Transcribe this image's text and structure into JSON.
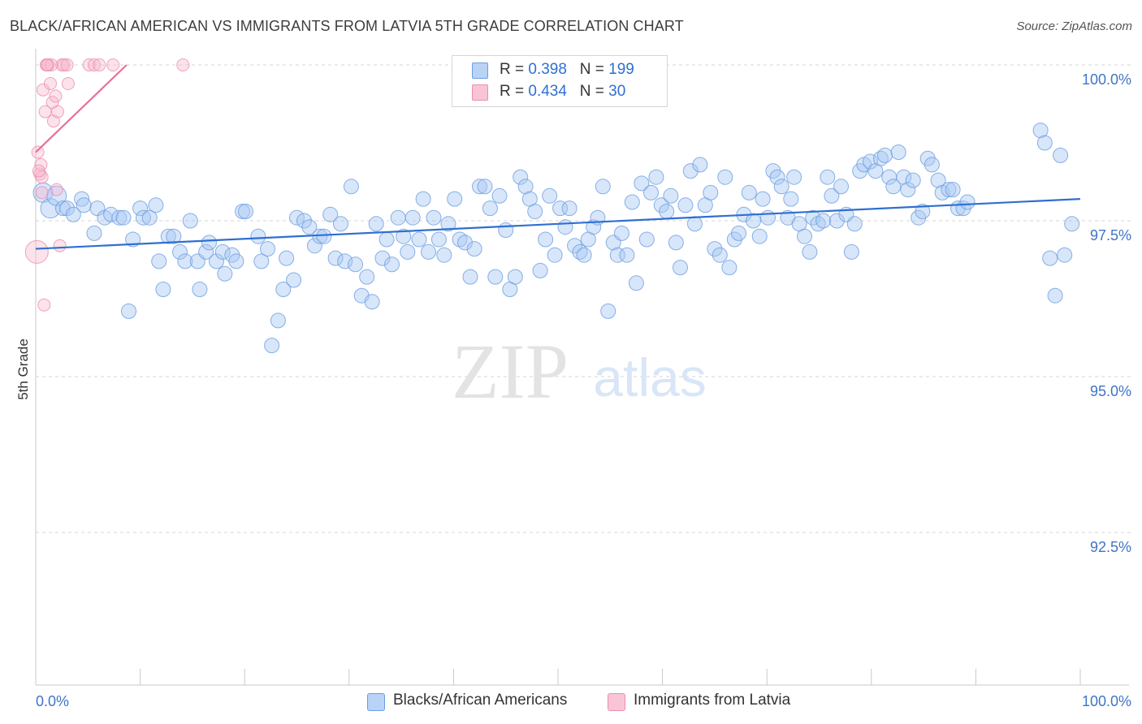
{
  "title": "BLACK/AFRICAN AMERICAN VS IMMIGRANTS FROM LATVIA 5TH GRADE CORRELATION CHART",
  "source": "Source: ZipAtlas.com",
  "watermark": {
    "zip": "ZIP",
    "atlas": "atlas"
  },
  "legend": {
    "rows": [
      {
        "r_label": "R =",
        "r_value": "0.398",
        "n_label": "N =",
        "n_value": "199",
        "color": "#a9c8f5"
      },
      {
        "r_label": "R =",
        "r_value": "0.434",
        "n_label": "N =",
        "n_value": "30",
        "color": "#f7b7cc"
      }
    ]
  },
  "bottom_legend": [
    {
      "label": "Blacks/African Americans",
      "color": "#a9c8f5"
    },
    {
      "label": "Immigrants from Latvia",
      "color": "#f7b7cc"
    }
  ],
  "chart_data": {
    "type": "scatter",
    "title": "BLACK/AFRICAN AMERICAN VS IMMIGRANTS FROM LATVIA 5TH GRADE CORRELATION CHART",
    "xlabel": "",
    "ylabel": "5th Grade",
    "xlim": [
      0,
      100
    ],
    "ylim": [
      90.0,
      100.2
    ],
    "y_ticks": [
      {
        "value": 100.0,
        "label": "100.0%"
      },
      {
        "value": 97.5,
        "label": "97.5%"
      },
      {
        "value": 95.0,
        "label": "95.0%"
      },
      {
        "value": 92.5,
        "label": "92.5%"
      }
    ],
    "x_tick_labels": {
      "min": "0.0%",
      "max": "100.0%"
    },
    "x_minor_ticks": [
      10,
      20,
      30,
      40,
      50,
      60,
      70,
      80,
      90,
      100
    ],
    "grid": true,
    "series": [
      {
        "name": "Blacks/African Americans",
        "color": "#a9c8f5",
        "stroke": "#6b9de0",
        "line_color": "#2f6fd1",
        "trend": {
          "x0": 0,
          "y0": 97.05,
          "x1": 100,
          "y1": 97.85
        },
        "points": [
          [
            0.7,
            97.95
          ],
          [
            1.4,
            97.7
          ],
          [
            2.0,
            97.9
          ],
          [
            2.6,
            97.7
          ],
          [
            3.0,
            97.7
          ],
          [
            3.6,
            97.6
          ],
          [
            4.4,
            97.85
          ],
          [
            4.6,
            97.75
          ],
          [
            5.6,
            97.3
          ],
          [
            5.9,
            97.7
          ],
          [
            6.6,
            97.55
          ],
          [
            7.2,
            97.6
          ],
          [
            8.0,
            97.55
          ],
          [
            8.4,
            97.55
          ],
          [
            8.9,
            96.05
          ],
          [
            9.3,
            97.2
          ],
          [
            10.0,
            97.7
          ],
          [
            10.3,
            97.55
          ],
          [
            10.9,
            97.55
          ],
          [
            11.5,
            97.75
          ],
          [
            11.8,
            96.85
          ],
          [
            12.2,
            96.4
          ],
          [
            12.7,
            97.25
          ],
          [
            13.2,
            97.25
          ],
          [
            13.8,
            97.0
          ],
          [
            14.3,
            96.85
          ],
          [
            14.8,
            97.5
          ],
          [
            15.5,
            96.85
          ],
          [
            15.7,
            96.4
          ],
          [
            16.3,
            97.0
          ],
          [
            16.6,
            97.15
          ],
          [
            17.3,
            96.85
          ],
          [
            17.9,
            97.0
          ],
          [
            18.1,
            96.65
          ],
          [
            18.8,
            96.95
          ],
          [
            19.2,
            96.85
          ],
          [
            19.8,
            97.65
          ],
          [
            20.1,
            97.65
          ],
          [
            21.3,
            97.25
          ],
          [
            21.6,
            96.85
          ],
          [
            22.2,
            97.05
          ],
          [
            22.6,
            95.5
          ],
          [
            23.2,
            95.9
          ],
          [
            23.7,
            96.4
          ],
          [
            24.0,
            96.9
          ],
          [
            24.7,
            96.55
          ],
          [
            25.0,
            97.55
          ],
          [
            25.7,
            97.5
          ],
          [
            26.2,
            97.4
          ],
          [
            26.7,
            97.1
          ],
          [
            27.2,
            97.25
          ],
          [
            27.6,
            97.25
          ],
          [
            28.2,
            97.6
          ],
          [
            28.7,
            96.9
          ],
          [
            29.2,
            97.45
          ],
          [
            29.6,
            96.85
          ],
          [
            30.2,
            98.05
          ],
          [
            30.6,
            96.8
          ],
          [
            31.2,
            96.3
          ],
          [
            31.7,
            96.6
          ],
          [
            32.2,
            96.2
          ],
          [
            32.6,
            97.45
          ],
          [
            33.2,
            96.9
          ],
          [
            33.6,
            97.2
          ],
          [
            34.1,
            96.8
          ],
          [
            34.7,
            97.55
          ],
          [
            35.2,
            97.25
          ],
          [
            35.6,
            97.0
          ],
          [
            36.1,
            97.55
          ],
          [
            36.7,
            97.2
          ],
          [
            37.1,
            97.85
          ],
          [
            37.6,
            97.0
          ],
          [
            38.1,
            97.55
          ],
          [
            38.6,
            97.2
          ],
          [
            39.1,
            96.95
          ],
          [
            39.5,
            97.45
          ],
          [
            40.1,
            97.85
          ],
          [
            40.6,
            97.2
          ],
          [
            41.1,
            97.15
          ],
          [
            41.6,
            96.6
          ],
          [
            42.0,
            97.05
          ],
          [
            42.5,
            98.05
          ],
          [
            43.0,
            98.05
          ],
          [
            43.5,
            97.7
          ],
          [
            44.0,
            96.6
          ],
          [
            44.4,
            97.9
          ],
          [
            45.0,
            97.35
          ],
          [
            45.4,
            96.4
          ],
          [
            45.9,
            96.6
          ],
          [
            46.4,
            98.2
          ],
          [
            46.9,
            98.05
          ],
          [
            47.3,
            97.85
          ],
          [
            47.8,
            97.65
          ],
          [
            48.3,
            96.7
          ],
          [
            48.8,
            97.2
          ],
          [
            49.2,
            97.9
          ],
          [
            49.7,
            96.95
          ],
          [
            50.2,
            97.7
          ],
          [
            50.7,
            97.4
          ],
          [
            51.1,
            97.7
          ],
          [
            51.6,
            97.1
          ],
          [
            52.1,
            97.0
          ],
          [
            52.5,
            96.95
          ],
          [
            52.9,
            97.2
          ],
          [
            53.4,
            97.4
          ],
          [
            53.8,
            97.55
          ],
          [
            54.3,
            98.05
          ],
          [
            54.8,
            96.05
          ],
          [
            55.3,
            97.15
          ],
          [
            55.7,
            96.95
          ],
          [
            56.1,
            97.3
          ],
          [
            56.6,
            96.95
          ],
          [
            57.1,
            97.8
          ],
          [
            57.5,
            96.5
          ],
          [
            58.0,
            98.1
          ],
          [
            58.5,
            97.2
          ],
          [
            58.9,
            97.95
          ],
          [
            59.4,
            98.2
          ],
          [
            59.9,
            97.75
          ],
          [
            60.4,
            97.65
          ],
          [
            60.8,
            97.9
          ],
          [
            61.3,
            97.15
          ],
          [
            61.7,
            96.75
          ],
          [
            62.2,
            97.75
          ],
          [
            62.7,
            98.3
          ],
          [
            63.1,
            97.45
          ],
          [
            63.6,
            98.4
          ],
          [
            64.1,
            97.75
          ],
          [
            64.6,
            97.95
          ],
          [
            65.0,
            97.05
          ],
          [
            65.5,
            96.95
          ],
          [
            66.0,
            98.2
          ],
          [
            66.4,
            96.75
          ],
          [
            66.9,
            97.2
          ],
          [
            67.3,
            97.3
          ],
          [
            67.8,
            97.6
          ],
          [
            68.3,
            97.95
          ],
          [
            68.7,
            97.5
          ],
          [
            69.3,
            97.25
          ],
          [
            69.6,
            97.85
          ],
          [
            70.1,
            97.55
          ],
          [
            70.6,
            98.3
          ],
          [
            71.0,
            98.2
          ],
          [
            71.4,
            98.05
          ],
          [
            72.0,
            97.55
          ],
          [
            72.3,
            97.85
          ],
          [
            72.6,
            98.2
          ],
          [
            73.1,
            97.45
          ],
          [
            73.6,
            97.25
          ],
          [
            74.1,
            97.0
          ],
          [
            74.4,
            97.55
          ],
          [
            74.9,
            97.45
          ],
          [
            75.4,
            97.5
          ],
          [
            75.8,
            98.2
          ],
          [
            76.2,
            97.9
          ],
          [
            76.7,
            97.5
          ],
          [
            77.1,
            98.05
          ],
          [
            77.6,
            97.6
          ],
          [
            78.1,
            97.0
          ],
          [
            78.4,
            97.45
          ],
          [
            78.9,
            98.3
          ],
          [
            79.3,
            98.4
          ],
          [
            79.9,
            98.45
          ],
          [
            80.4,
            98.3
          ],
          [
            80.9,
            98.5
          ],
          [
            81.3,
            98.55
          ],
          [
            81.7,
            98.2
          ],
          [
            82.1,
            98.05
          ],
          [
            82.6,
            98.6
          ],
          [
            83.1,
            98.2
          ],
          [
            83.5,
            98.0
          ],
          [
            84.0,
            98.15
          ],
          [
            84.5,
            97.55
          ],
          [
            84.9,
            97.65
          ],
          [
            85.4,
            98.5
          ],
          [
            85.8,
            98.4
          ],
          [
            86.4,
            98.15
          ],
          [
            86.8,
            97.95
          ],
          [
            87.4,
            98.0
          ],
          [
            87.8,
            98.0
          ],
          [
            88.3,
            97.7
          ],
          [
            88.8,
            97.7
          ],
          [
            89.2,
            97.8
          ],
          [
            96.2,
            98.95
          ],
          [
            96.6,
            98.75
          ],
          [
            97.1,
            96.9
          ],
          [
            97.6,
            96.3
          ],
          [
            98.1,
            98.55
          ],
          [
            98.5,
            96.95
          ],
          [
            99.2,
            97.45
          ]
        ]
      },
      {
        "name": "Immigrants from Latvia",
        "color": "#f7b7cc",
        "stroke": "#ea8fae",
        "line_color": "#e8709a",
        "trend": {
          "x0": 0,
          "y0": 98.6,
          "x1": 8.7,
          "y1": 100.0
        },
        "points": [
          [
            0.1,
            97.0
          ],
          [
            0.2,
            98.6
          ],
          [
            0.4,
            98.25
          ],
          [
            0.5,
            98.4
          ],
          [
            0.6,
            98.2
          ],
          [
            0.8,
            96.15
          ],
          [
            0.7,
            99.6
          ],
          [
            0.9,
            99.25
          ],
          [
            1.0,
            100.0
          ],
          [
            1.2,
            100.0
          ],
          [
            1.4,
            99.7
          ],
          [
            1.5,
            100.0
          ],
          [
            1.6,
            99.4
          ],
          [
            1.7,
            99.1
          ],
          [
            1.9,
            99.5
          ],
          [
            2.0,
            98.0
          ],
          [
            2.1,
            99.25
          ],
          [
            2.3,
            97.1
          ],
          [
            2.5,
            100.0
          ],
          [
            2.7,
            100.0
          ],
          [
            3.0,
            100.0
          ],
          [
            3.1,
            99.7
          ],
          [
            5.1,
            100.0
          ],
          [
            5.6,
            100.0
          ],
          [
            6.1,
            100.0
          ],
          [
            7.4,
            100.0
          ],
          [
            14.1,
            100.0
          ],
          [
            1.1,
            100.0
          ],
          [
            0.3,
            98.3
          ],
          [
            0.6,
            97.95
          ]
        ]
      }
    ]
  }
}
